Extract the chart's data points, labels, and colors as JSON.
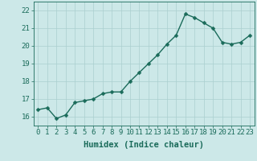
{
  "x": [
    0,
    1,
    2,
    3,
    4,
    5,
    6,
    7,
    8,
    9,
    10,
    11,
    12,
    13,
    14,
    15,
    16,
    17,
    18,
    19,
    20,
    21,
    22,
    23
  ],
  "y": [
    16.4,
    16.5,
    15.9,
    16.1,
    16.8,
    16.9,
    17.0,
    17.3,
    17.4,
    17.4,
    18.0,
    18.5,
    19.0,
    19.5,
    20.1,
    20.6,
    21.8,
    21.6,
    21.3,
    21.0,
    20.2,
    20.1,
    20.2,
    20.6
  ],
  "xlabel": "Humidex (Indice chaleur)",
  "ylabel": "",
  "ylim": [
    15.5,
    22.5
  ],
  "xlim": [
    -0.5,
    23.5
  ],
  "yticks": [
    16,
    17,
    18,
    19,
    20,
    21,
    22
  ],
  "xticks": [
    0,
    1,
    2,
    3,
    4,
    5,
    6,
    7,
    8,
    9,
    10,
    11,
    12,
    13,
    14,
    15,
    16,
    17,
    18,
    19,
    20,
    21,
    22,
    23
  ],
  "line_color": "#1a6b5a",
  "marker_color": "#1a6b5a",
  "bg_color": "#cce8e8",
  "grid_color": "#aacfcf",
  "axes_bg": "#cce8e8",
  "xlabel_fontsize": 7.5,
  "tick_fontsize": 6.5,
  "line_width": 1.0,
  "marker_size": 2.5
}
